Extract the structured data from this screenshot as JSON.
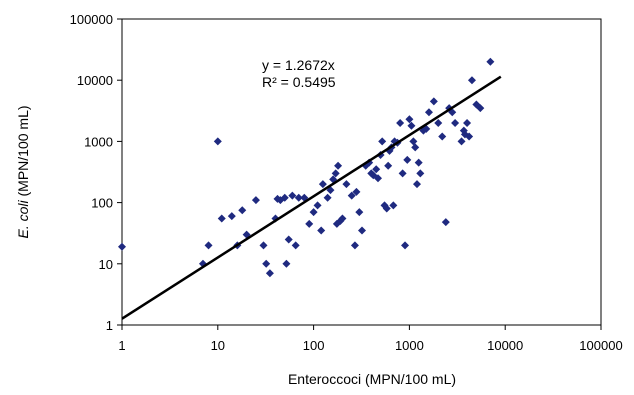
{
  "chart_data": {
    "type": "scatter",
    "title": "",
    "xlabel": "Enteroccoci (MPN/100 mL)",
    "ylabel_italic": "E. coli",
    "ylabel_rest": " (MPN/100 mL)",
    "xscale": "log",
    "yscale": "log",
    "xlim": [
      1,
      100000
    ],
    "ylim": [
      1,
      100000
    ],
    "x_tick_labels": [
      "1",
      "10",
      "100",
      "1000",
      "10000",
      "100000"
    ],
    "y_tick_labels": [
      "1",
      "10",
      "100",
      "1000",
      "10000",
      "100000"
    ],
    "grid": false,
    "legend": "none",
    "marker_color": "#1f2a80",
    "trendline_color": "#000000",
    "annotations": {
      "equation": "y = 1.2672x",
      "r_squared": "R² = 0.5495"
    },
    "trendline": {
      "slope": 1.2672,
      "x_range": [
        1,
        9000
      ]
    },
    "points": [
      [
        1,
        19
      ],
      [
        7,
        10
      ],
      [
        8,
        20
      ],
      [
        10,
        1000
      ],
      [
        11,
        55
      ],
      [
        14,
        60
      ],
      [
        16,
        20
      ],
      [
        18,
        75
      ],
      [
        20,
        30
      ],
      [
        25,
        110
      ],
      [
        30,
        20
      ],
      [
        32,
        10
      ],
      [
        35,
        7
      ],
      [
        40,
        55
      ],
      [
        42,
        115
      ],
      [
        45,
        110
      ],
      [
        50,
        120
      ],
      [
        52,
        10
      ],
      [
        55,
        25
      ],
      [
        60,
        130
      ],
      [
        65,
        20
      ],
      [
        70,
        120
      ],
      [
        80,
        120
      ],
      [
        90,
        45
      ],
      [
        100,
        70
      ],
      [
        110,
        90
      ],
      [
        120,
        35
      ],
      [
        125,
        200
      ],
      [
        140,
        120
      ],
      [
        150,
        160
      ],
      [
        160,
        240
      ],
      [
        170,
        300
      ],
      [
        175,
        45
      ],
      [
        180,
        400
      ],
      [
        190,
        50
      ],
      [
        200,
        55
      ],
      [
        220,
        200
      ],
      [
        250,
        130
      ],
      [
        270,
        20
      ],
      [
        280,
        150
      ],
      [
        300,
        70
      ],
      [
        320,
        35
      ],
      [
        350,
        400
      ],
      [
        380,
        450
      ],
      [
        400,
        300
      ],
      [
        420,
        280
      ],
      [
        450,
        350
      ],
      [
        470,
        250
      ],
      [
        500,
        600
      ],
      [
        520,
        1000
      ],
      [
        550,
        90
      ],
      [
        580,
        80
      ],
      [
        600,
        400
      ],
      [
        620,
        700
      ],
      [
        650,
        800
      ],
      [
        680,
        90
      ],
      [
        700,
        1000
      ],
      [
        750,
        950
      ],
      [
        800,
        2000
      ],
      [
        850,
        300
      ],
      [
        900,
        20
      ],
      [
        950,
        500
      ],
      [
        1000,
        2300
      ],
      [
        1050,
        1800
      ],
      [
        1100,
        1000
      ],
      [
        1150,
        800
      ],
      [
        1200,
        200
      ],
      [
        1250,
        450
      ],
      [
        1300,
        300
      ],
      [
        1400,
        1500
      ],
      [
        1500,
        1600
      ],
      [
        1600,
        3000
      ],
      [
        1800,
        4500
      ],
      [
        2000,
        2000
      ],
      [
        2200,
        1200
      ],
      [
        2400,
        48
      ],
      [
        2600,
        3500
      ],
      [
        2800,
        3000
      ],
      [
        3000,
        2000
      ],
      [
        3500,
        1000
      ],
      [
        3700,
        1500
      ],
      [
        3800,
        1300
      ],
      [
        4000,
        2000
      ],
      [
        4200,
        1200
      ],
      [
        4500,
        10000
      ],
      [
        5000,
        4000
      ],
      [
        5500,
        3500
      ],
      [
        7000,
        20000
      ]
    ]
  }
}
